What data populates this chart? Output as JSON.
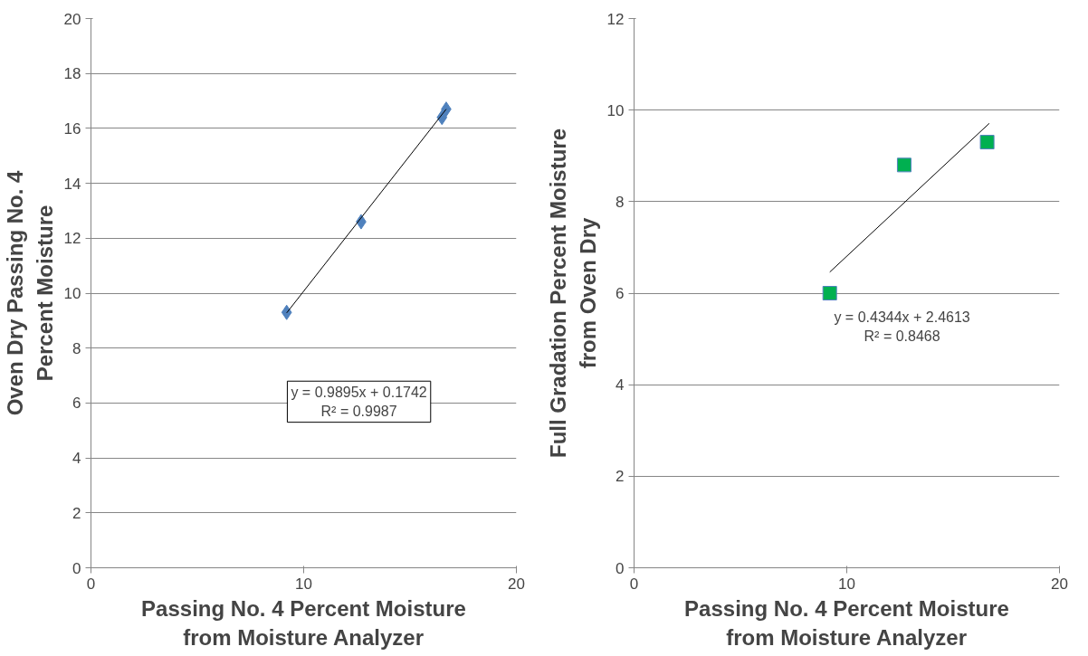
{
  "chart_data": [
    {
      "type": "scatter",
      "xlabel": "Passing No. 4 Percent Moisture\nfrom Moisture Analyzer",
      "ylabel": "Oven Dry Passing No. 4\nPercent Moisture",
      "marker": "diamond",
      "grid": "y",
      "xlim": [
        0,
        20
      ],
      "xticks": [
        0,
        10,
        20
      ],
      "ylim": [
        0,
        20
      ],
      "yticks": [
        0,
        2,
        4,
        6,
        8,
        10,
        12,
        14,
        16,
        18,
        20
      ],
      "series": [
        {
          "color": "#4f81bd",
          "x": [
            9.2,
            12.7,
            16.5,
            16.7
          ],
          "values": [
            9.3,
            12.6,
            16.4,
            16.7
          ]
        },
        {
          "type": "line",
          "marker": "none",
          "color": "#000000",
          "x": [
            9.2,
            16.7
          ],
          "values": [
            9.28,
            16.7
          ]
        }
      ],
      "annotations": [
        "y = 0.9895x + 0.1742\nR² = 0.9987"
      ]
    },
    {
      "type": "scatter",
      "xlabel": "Passing No. 4 Percent Moisture\nfrom Moisture Analyzer",
      "ylabel": "Full Gradation Percent Moisture\nfrom Oven Dry",
      "marker": "square",
      "grid": "y",
      "xlim": [
        0,
        20
      ],
      "xticks": [
        0,
        10,
        20
      ],
      "ylim": [
        0,
        12
      ],
      "yticks": [
        0,
        2,
        4,
        6,
        8,
        10,
        12
      ],
      "series": [
        {
          "color": "#00b050",
          "x": [
            9.2,
            12.7,
            16.6
          ],
          "values": [
            6.0,
            8.8,
            9.3
          ]
        },
        {
          "type": "line",
          "marker": "none",
          "color": "#000000",
          "x": [
            9.2,
            16.7
          ],
          "values": [
            6.46,
            9.71
          ]
        }
      ],
      "annotations": [
        "y = 0.4344x + 2.4613\nR² = 0.8468"
      ]
    }
  ]
}
